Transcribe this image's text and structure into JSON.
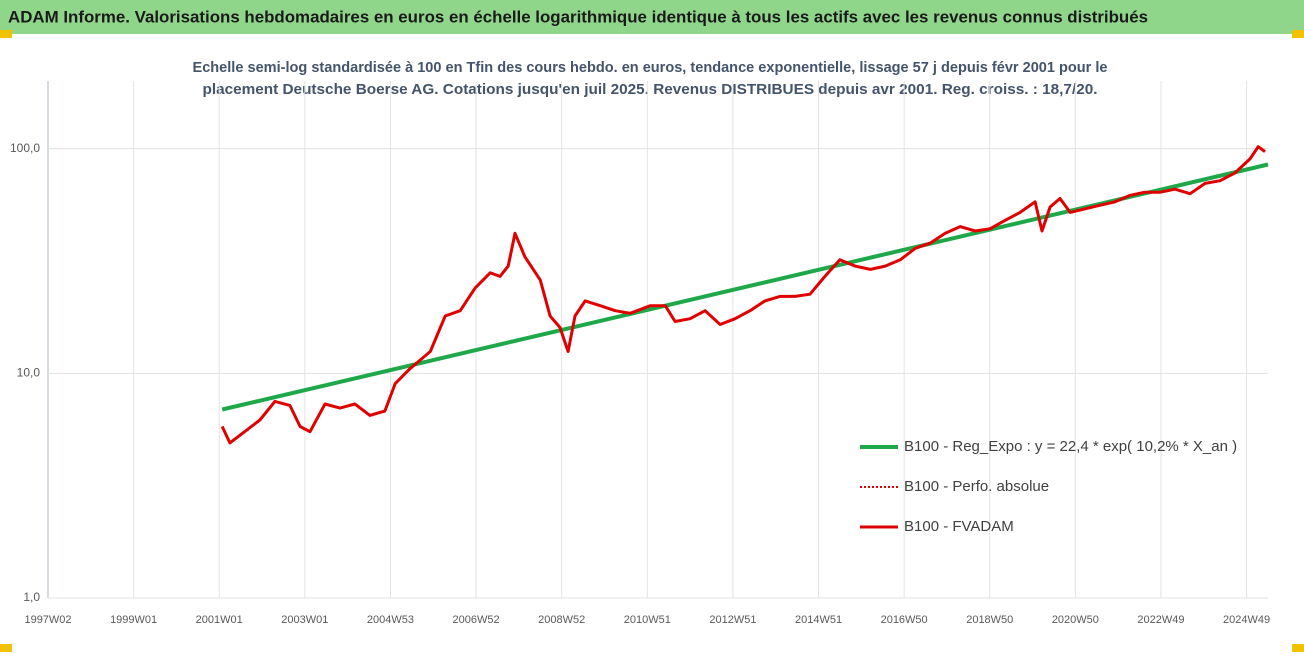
{
  "chart_data": {
    "type": "line",
    "title": "ADAM Informe. Valorisations hebdomadaires en euros en échelle logarithmique identique à tous les actifs avec les revenus connus distribués",
    "subtitle": [
      "Echelle semi-log standardisée à 100 en Tfin des cours hebdo. en euros, tendance exponentielle, lissage 57 j depuis févr 2001 pour le",
      "placement Deutsche Boerse AG. Cotations jusqu'en juil 2025. Revenus DISTRIBUES depuis avr 2001. Reg. croiss. : 18,7/20."
    ],
    "log_scale": true,
    "grid": true,
    "legend": "lower right",
    "xlim": [
      1997.0,
      2025.5
    ],
    "xticks": [
      {
        "value": 1997,
        "label": "1997W02"
      },
      {
        "value": 1999,
        "label": "1999W01"
      },
      {
        "value": 2001,
        "label": "2001W01"
      },
      {
        "value": 2003,
        "label": "2003W01"
      },
      {
        "value": 2005,
        "label": "2004W53"
      },
      {
        "value": 2007,
        "label": "2006W52"
      },
      {
        "value": 2009,
        "label": "2008W52"
      },
      {
        "value": 2011,
        "label": "2010W51"
      },
      {
        "value": 2013,
        "label": "2012W51"
      },
      {
        "value": 2015,
        "label": "2014W51"
      },
      {
        "value": 2017,
        "label": "2016W50"
      },
      {
        "value": 2019,
        "label": "2018W50"
      },
      {
        "value": 2021,
        "label": "2020W50"
      },
      {
        "value": 2023,
        "label": "2022W49"
      },
      {
        "value": 2025,
        "label": "2024W49"
      }
    ],
    "ylim": [
      1,
      200
    ],
    "yticks": [
      {
        "value": 1,
        "label": "1,0"
      },
      {
        "value": 10,
        "label": "10,0"
      },
      {
        "value": 100,
        "label": "100,0"
      }
    ],
    "series": [
      {
        "name": "B100 - Reg_Expo : y = 22,4 * exp( 10,2% *  X_an )",
        "color": "#1fa84a",
        "style": "solid",
        "width": 4,
        "x": [
          2001.07,
          2025.5
        ],
        "values": [
          6.9,
          85
        ]
      },
      {
        "name": "B100 - Perfo. absolue",
        "color": "#e00000",
        "style": "dotted",
        "width": 2,
        "x": [
          2001.07,
          2001.25,
          2001.95,
          2002.3,
          2002.65,
          2002.89,
          2003.12,
          2003.47,
          2003.82,
          2004.17,
          2004.52,
          2004.87,
          2005.11,
          2005.46,
          2005.93,
          2006.28,
          2006.63,
          2006.98,
          2007.33,
          2007.56,
          2007.75,
          2007.91,
          2008.14,
          2008.5,
          2008.73,
          2008.96,
          2009.15,
          2009.31,
          2009.55,
          2009.9,
          2010.25,
          2010.6,
          2011.07,
          2011.42,
          2011.65,
          2012.0,
          2012.35,
          2012.7,
          2013.05,
          2013.4,
          2013.75,
          2014.1,
          2014.45,
          2014.8,
          2015.15,
          2015.5,
          2015.86,
          2016.21,
          2016.56,
          2016.91,
          2017.26,
          2017.61,
          2017.96,
          2018.31,
          2018.66,
          2019.01,
          2019.36,
          2019.71,
          2020.06,
          2020.22,
          2020.41,
          2020.64,
          2020.88,
          2021.23,
          2021.58,
          2021.93,
          2022.28,
          2022.63,
          2022.98,
          2023.33,
          2023.68,
          2024.03,
          2024.38,
          2024.73,
          2025.08,
          2025.27,
          2025.43
        ],
        "values": [
          5.8,
          4.9,
          6.2,
          7.5,
          7.2,
          5.8,
          5.5,
          7.3,
          7.0,
          7.3,
          6.5,
          6.8,
          9.0,
          10.5,
          12.5,
          18,
          19,
          24,
          28,
          27,
          30,
          42,
          33,
          26,
          18,
          16,
          12.5,
          18,
          21,
          20,
          19,
          18.5,
          20,
          20,
          17,
          17.5,
          19,
          16.5,
          17.5,
          19,
          21,
          22,
          22,
          22.5,
          27,
          32,
          30,
          29,
          30,
          32,
          36,
          38,
          42,
          45,
          43,
          44,
          48,
          52,
          58,
          43,
          55,
          60,
          52,
          54,
          56,
          58,
          62,
          64,
          64,
          66,
          63,
          70,
          72,
          78,
          90,
          102,
          97
        ]
      },
      {
        "name": "B100 - FVADAM",
        "color": "#e00000",
        "style": "solid",
        "width": 3,
        "x": [
          2001.07,
          2001.25,
          2001.95,
          2002.3,
          2002.65,
          2002.89,
          2003.12,
          2003.47,
          2003.82,
          2004.17,
          2004.52,
          2004.87,
          2005.11,
          2005.46,
          2005.93,
          2006.28,
          2006.63,
          2006.98,
          2007.33,
          2007.56,
          2007.75,
          2007.91,
          2008.14,
          2008.5,
          2008.73,
          2008.96,
          2009.15,
          2009.31,
          2009.55,
          2009.9,
          2010.25,
          2010.6,
          2011.07,
          2011.42,
          2011.65,
          2012.0,
          2012.35,
          2012.7,
          2013.05,
          2013.4,
          2013.75,
          2014.1,
          2014.45,
          2014.8,
          2015.15,
          2015.5,
          2015.86,
          2016.21,
          2016.56,
          2016.91,
          2017.26,
          2017.61,
          2017.96,
          2018.31,
          2018.66,
          2019.01,
          2019.36,
          2019.71,
          2020.06,
          2020.22,
          2020.41,
          2020.64,
          2020.88,
          2021.23,
          2021.58,
          2021.93,
          2022.28,
          2022.63,
          2022.98,
          2023.33,
          2023.68,
          2024.03,
          2024.38,
          2024.73,
          2025.08,
          2025.27,
          2025.43
        ],
        "values": [
          5.8,
          4.9,
          6.2,
          7.5,
          7.2,
          5.8,
          5.5,
          7.3,
          7.0,
          7.3,
          6.5,
          6.8,
          9.0,
          10.5,
          12.5,
          18,
          19,
          24,
          28,
          27,
          30,
          42,
          33,
          26,
          18,
          16,
          12.5,
          18,
          21,
          20,
          19,
          18.5,
          20,
          20,
          17,
          17.5,
          19,
          16.5,
          17.5,
          19,
          21,
          22,
          22,
          22.5,
          27,
          32,
          30,
          29,
          30,
          32,
          36,
          38,
          42,
          45,
          43,
          44,
          48,
          52,
          58,
          43,
          55,
          60,
          52,
          54,
          56,
          58,
          62,
          64,
          64,
          66,
          63,
          70,
          72,
          78,
          90,
          102,
          97
        ]
      }
    ]
  }
}
